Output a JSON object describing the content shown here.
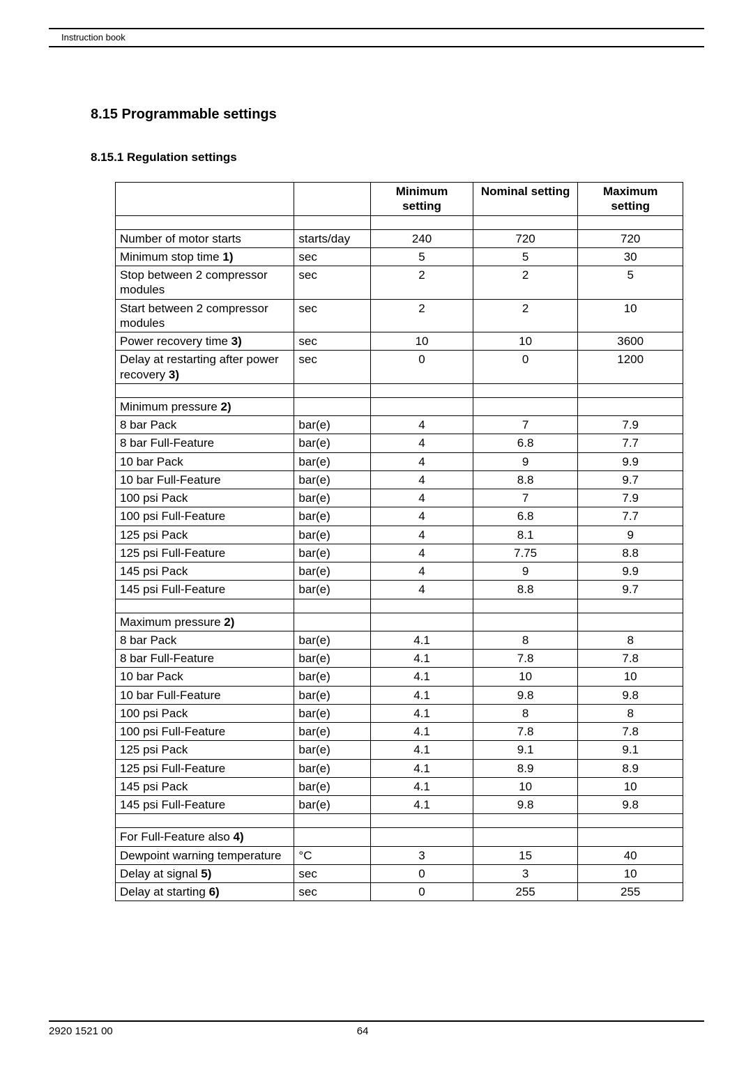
{
  "header": {
    "text": "Instruction book"
  },
  "section": {
    "title": "8.15 Programmable settings"
  },
  "subsection": {
    "title": "8.15.1 Regulation settings"
  },
  "table": {
    "columns": [
      "",
      "",
      "Minimum setting",
      "Nominal setting",
      "Maximum setting"
    ],
    "groups": [
      {
        "heading": null,
        "rows": [
          {
            "label": "Number of motor starts",
            "unit": "starts/day",
            "min": "240",
            "nom": "720",
            "max": "720"
          },
          {
            "label_html": "Minimum stop time <b>1)</b>",
            "unit": "sec",
            "min": "5",
            "nom": "5",
            "max": "30"
          },
          {
            "label": "Stop between 2 compressor modules",
            "unit": "sec",
            "min": "2",
            "nom": "2",
            "max": "5"
          },
          {
            "label": "Start between 2 compressor modules",
            "unit": "sec",
            "min": "2",
            "nom": "2",
            "max": "10"
          },
          {
            "label_html": "Power recovery time <b>3)</b>",
            "unit": "sec",
            "min": "10",
            "nom": "10",
            "max": "3600"
          },
          {
            "label_html": "Delay at restarting after power recovery <b>3)</b>",
            "unit": "sec",
            "min": "0",
            "nom": "0",
            "max": "1200"
          }
        ]
      },
      {
        "heading_html": "Minimum pressure <b>2)</b>",
        "rows": [
          {
            "label": "8 bar Pack",
            "unit": "bar(e)",
            "min": "4",
            "nom": "7",
            "max": "7.9"
          },
          {
            "label": "8 bar Full-Feature",
            "unit": "bar(e)",
            "min": "4",
            "nom": "6.8",
            "max": "7.7"
          },
          {
            "label": "10 bar Pack",
            "unit": "bar(e)",
            "min": "4",
            "nom": "9",
            "max": "9.9"
          },
          {
            "label": "10 bar Full-Feature",
            "unit": "bar(e)",
            "min": "4",
            "nom": "8.8",
            "max": "9.7"
          },
          {
            "label": "100 psi Pack",
            "unit": "bar(e)",
            "min": "4",
            "nom": "7",
            "max": "7.9"
          },
          {
            "label": "100 psi Full-Feature",
            "unit": "bar(e)",
            "min": "4",
            "nom": "6.8",
            "max": "7.7"
          },
          {
            "label": "125 psi Pack",
            "unit": "bar(e)",
            "min": "4",
            "nom": "8.1",
            "max": "9"
          },
          {
            "label": "125 psi Full-Feature",
            "unit": "bar(e)",
            "min": "4",
            "nom": "7.75",
            "max": "8.8"
          },
          {
            "label": "145 psi Pack",
            "unit": "bar(e)",
            "min": "4",
            "nom": "9",
            "max": "9.9"
          },
          {
            "label": "145 psi Full-Feature",
            "unit": "bar(e)",
            "min": "4",
            "nom": "8.8",
            "max": "9.7"
          }
        ]
      },
      {
        "heading_html": "Maximum pressure <b>2)</b>",
        "rows": [
          {
            "label": "8 bar Pack",
            "unit": "bar(e)",
            "min": "4.1",
            "nom": "8",
            "max": "8"
          },
          {
            "label": "8 bar Full-Feature",
            "unit": "bar(e)",
            "min": "4.1",
            "nom": "7.8",
            "max": "7.8"
          },
          {
            "label": "10 bar Pack",
            "unit": "bar(e)",
            "min": "4.1",
            "nom": "10",
            "max": "10"
          },
          {
            "label": "10 bar Full-Feature",
            "unit": "bar(e)",
            "min": "4.1",
            "nom": "9.8",
            "max": "9.8"
          },
          {
            "label": "100 psi Pack",
            "unit": "bar(e)",
            "min": "4.1",
            "nom": "8",
            "max": "8"
          },
          {
            "label": "100 psi Full-Feature",
            "unit": "bar(e)",
            "min": "4.1",
            "nom": "7.8",
            "max": "7.8"
          },
          {
            "label": "125 psi Pack",
            "unit": "bar(e)",
            "min": "4.1",
            "nom": "9.1",
            "max": "9.1"
          },
          {
            "label": "125 psi Full-Feature",
            "unit": "bar(e)",
            "min": "4.1",
            "nom": "8.9",
            "max": "8.9"
          },
          {
            "label": "145 psi Pack",
            "unit": "bar(e)",
            "min": "4.1",
            "nom": "10",
            "max": "10"
          },
          {
            "label": "145 psi Full-Feature",
            "unit": "bar(e)",
            "min": "4.1",
            "nom": "9.8",
            "max": "9.8"
          }
        ]
      },
      {
        "heading_html": "For Full-Feature also <b>4)</b>",
        "rows": [
          {
            "label": "Dewpoint warning temperature",
            "unit": "°C",
            "min": "3",
            "nom": "15",
            "max": "40"
          },
          {
            "label_html": "Delay at signal <b>5)</b>",
            "unit": "sec",
            "min": "0",
            "nom": "3",
            "max": "10"
          },
          {
            "label_html": "Delay at starting <b>6)</b>",
            "unit": "sec",
            "min": "0",
            "nom": "255",
            "max": "255"
          }
        ]
      }
    ]
  },
  "footer": {
    "partnumber": "2920 1521 00",
    "page": "64"
  }
}
